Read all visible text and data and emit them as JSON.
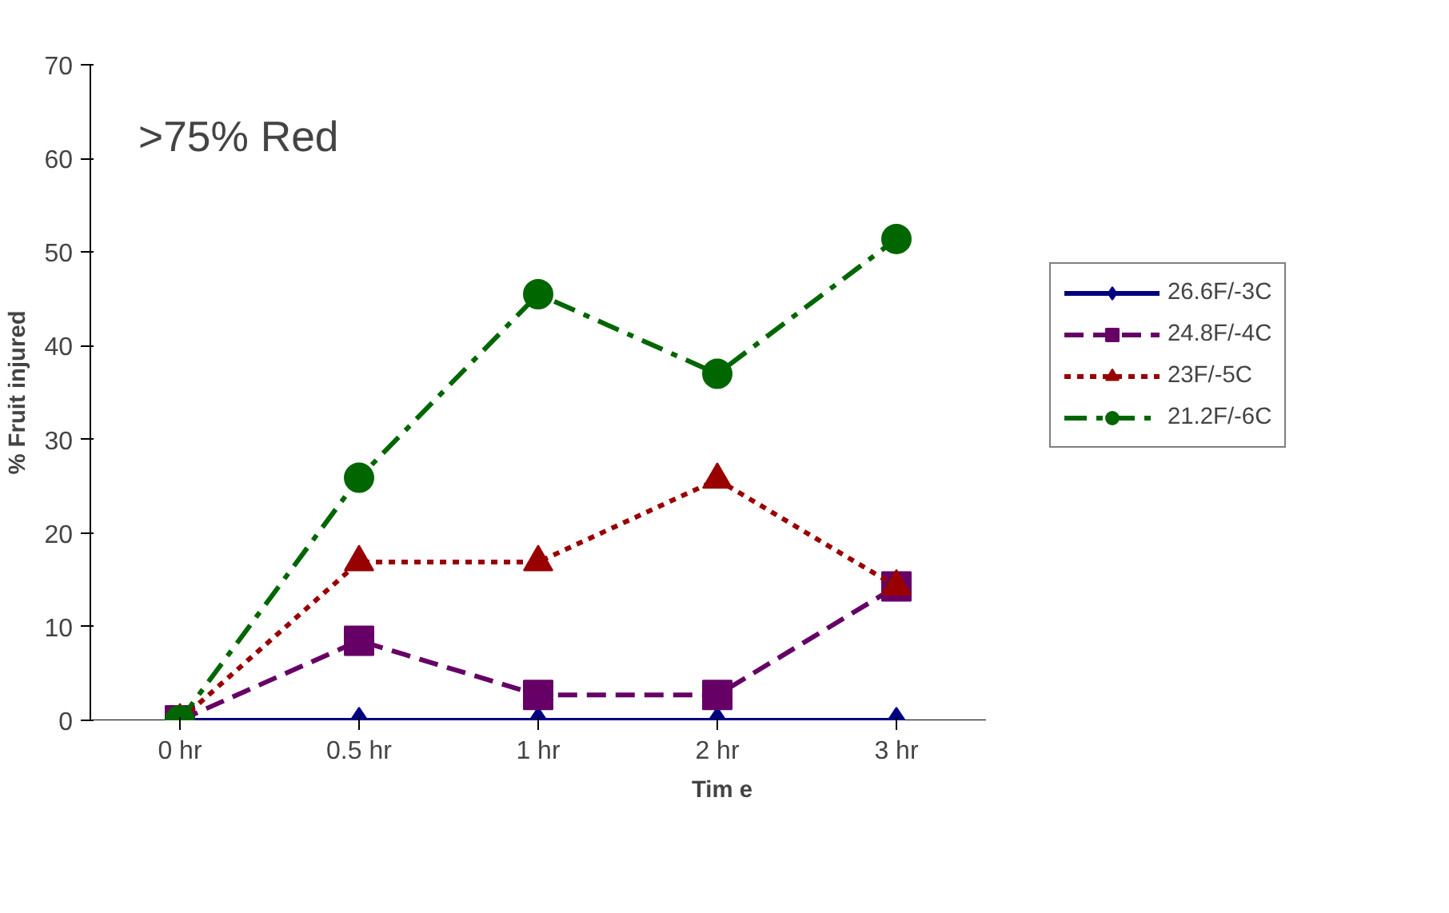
{
  "chart_data": {
    "type": "line",
    "xlabel": "Tim e",
    "ylabel": "% Fruit injured",
    "annotations": [
      ">75% Red"
    ],
    "categories": [
      "0 hr",
      "0.5 hr",
      "1 hr",
      "2 hr",
      "3 hr"
    ],
    "ylim": [
      0,
      70
    ],
    "yticks": [
      0,
      10,
      20,
      30,
      40,
      50,
      60,
      70
    ],
    "grid": false,
    "legend": "right",
    "series": [
      {
        "name": "26.6F/-3C",
        "color": "#000080",
        "values": [
          0,
          0,
          0,
          0,
          0
        ],
        "marker": "diamond",
        "line_style": "solid"
      },
      {
        "name": "24.8F/-4C",
        "color": "#660066",
        "values": [
          0,
          8.5,
          2.7,
          2.7,
          14.3
        ],
        "marker": "square",
        "line_style": "dashed"
      },
      {
        "name": "23F/-5C",
        "color": "#990000",
        "values": [
          0,
          16.9,
          16.9,
          25.7,
          14.3
        ],
        "marker": "triangle",
        "line_style": "dotted"
      },
      {
        "name": "21.2F/-6C",
        "color": "#006600",
        "values": [
          0,
          25.9,
          45.5,
          37,
          51.4
        ],
        "marker": "circle",
        "line_style": "dashdot"
      }
    ]
  }
}
